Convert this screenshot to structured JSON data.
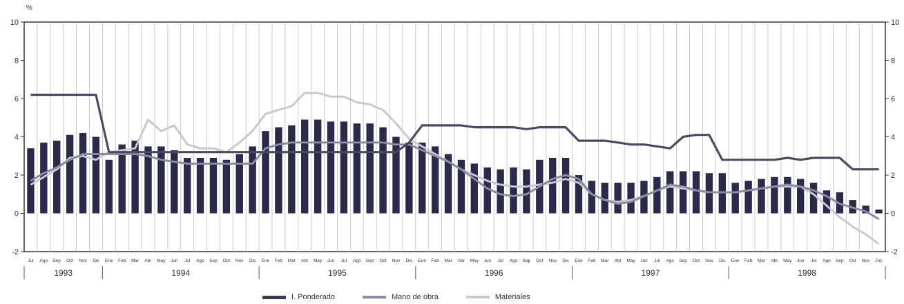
{
  "chart_data": {
    "type": "bar+line",
    "ylabel": "%",
    "ylim": [
      -2,
      10
    ],
    "yticks": [
      -2,
      0,
      2,
      4,
      6,
      8,
      10
    ],
    "grid": "vertical",
    "legend_position": "bottom",
    "years": [
      {
        "label": "1993",
        "months": 6
      },
      {
        "label": "1994",
        "months": 12
      },
      {
        "label": "1995",
        "months": 12
      },
      {
        "label": "1996",
        "months": 12
      },
      {
        "label": "1997",
        "months": 12
      },
      {
        "label": "1998",
        "months": 12
      }
    ],
    "categories": [
      "Jul",
      "Ago",
      "Sep",
      "Oct",
      "Nov",
      "Dic",
      "Ene",
      "Feb",
      "Mar",
      "Abr",
      "May",
      "Jun",
      "Jul",
      "Ago",
      "Sep",
      "Oct",
      "Nov",
      "Dic",
      "Ene",
      "Feb",
      "Mar",
      "Abr",
      "May",
      "Jun",
      "Jul",
      "Ago",
      "Sep",
      "Oct",
      "Nov",
      "Dic",
      "Ene",
      "Feb",
      "Mar",
      "Abr",
      "May",
      "Jun",
      "Jul",
      "Ago",
      "Sep",
      "Oct",
      "Nov",
      "Dic",
      "Ene",
      "Feb",
      "Mar",
      "Abr",
      "May",
      "Jun",
      "Jul",
      "Ago",
      "Sep",
      "Oct",
      "Nov",
      "Dic",
      "Ene",
      "Feb",
      "Mar",
      "Abr",
      "May",
      "Jun",
      "Jul",
      "Ago",
      "Sep",
      "Oct",
      "Nov",
      "Dic"
    ],
    "series": [
      {
        "name": "Materiales",
        "type": "bar",
        "color": "#2b2a4a",
        "values": [
          3.4,
          3.7,
          3.8,
          4.1,
          4.2,
          4.0,
          2.8,
          3.6,
          3.8,
          3.5,
          3.5,
          3.3,
          2.9,
          2.9,
          2.9,
          2.8,
          3.1,
          3.5,
          4.3,
          4.5,
          4.6,
          4.9,
          4.9,
          4.8,
          4.8,
          4.7,
          4.7,
          4.5,
          4.0,
          3.7,
          3.7,
          3.5,
          3.1,
          2.8,
          2.6,
          2.4,
          2.3,
          2.4,
          2.3,
          2.8,
          2.9,
          2.9,
          2.0,
          1.7,
          1.6,
          1.6,
          1.6,
          1.7,
          1.9,
          2.2,
          2.2,
          2.2,
          2.1,
          2.1,
          1.6,
          1.7,
          1.8,
          1.9,
          1.9,
          1.8,
          1.6,
          1.2,
          1.1,
          0.7,
          0.4,
          0.2
        ]
      },
      {
        "name": "I. Ponderado",
        "type": "line",
        "color": "#4a4a62",
        "values": [
          6.2,
          6.2,
          6.2,
          6.2,
          6.2,
          6.2,
          3.2,
          3.2,
          3.2,
          3.2,
          3.2,
          3.2,
          3.2,
          3.2,
          3.2,
          3.2,
          3.2,
          3.2,
          3.2,
          3.2,
          3.2,
          3.2,
          3.2,
          3.2,
          3.2,
          3.2,
          3.2,
          3.2,
          3.2,
          3.7,
          4.6,
          4.6,
          4.6,
          4.6,
          4.5,
          4.5,
          4.5,
          4.5,
          4.4,
          4.5,
          4.5,
          4.5,
          3.8,
          3.8,
          3.8,
          3.7,
          3.6,
          3.6,
          3.5,
          3.4,
          4.0,
          4.1,
          4.1,
          2.8,
          2.8,
          2.8,
          2.8,
          2.8,
          2.9,
          2.8,
          2.9,
          2.9,
          2.9,
          2.3,
          2.3,
          2.3
        ]
      },
      {
        "name": "Mano de obra",
        "type": "line",
        "color": "#8a8aa2",
        "values": [
          1.7,
          2.1,
          2.4,
          2.8,
          3.1,
          3.1,
          3.1,
          3.1,
          3.1,
          3.0,
          2.8,
          2.7,
          2.6,
          2.6,
          2.6,
          2.6,
          2.6,
          2.6,
          3.4,
          3.6,
          3.7,
          3.7,
          3.7,
          3.7,
          3.7,
          3.7,
          3.7,
          3.7,
          3.6,
          3.6,
          3.3,
          3.0,
          2.7,
          2.3,
          1.8,
          1.3,
          1.0,
          0.9,
          1.0,
          1.4,
          1.8,
          2.0,
          1.8,
          1.0,
          0.7,
          0.5,
          0.6,
          0.9,
          1.2,
          1.5,
          1.4,
          1.2,
          1.1,
          1.1,
          1.1,
          1.2,
          1.3,
          1.4,
          1.5,
          1.4,
          1.2,
          0.9,
          0.5,
          0.3,
          0.1,
          -0.3
        ]
      },
      {
        "name": "Materiales",
        "type": "line",
        "color": "#c8c8d2",
        "values": [
          1.5,
          1.9,
          2.3,
          2.9,
          3.0,
          2.8,
          3.2,
          3.3,
          3.4,
          4.9,
          4.3,
          4.6,
          3.6,
          3.4,
          3.4,
          3.2,
          3.7,
          4.3,
          5.2,
          5.4,
          5.6,
          6.3,
          6.3,
          6.1,
          6.1,
          5.8,
          5.7,
          5.4,
          4.7,
          3.9,
          3.5,
          3.1,
          2.7,
          2.3,
          2.0,
          1.7,
          1.5,
          1.4,
          1.4,
          1.5,
          1.6,
          1.8,
          1.6,
          1.0,
          0.7,
          0.6,
          0.7,
          0.9,
          1.2,
          1.4,
          1.3,
          1.2,
          1.1,
          1.1,
          1.1,
          1.2,
          1.3,
          1.4,
          1.4,
          1.4,
          1.0,
          0.4,
          -0.2,
          -0.7,
          -1.1,
          -1.6
        ]
      }
    ],
    "legend": [
      {
        "name": "I. Ponderado",
        "color": "#4a4a62"
      },
      {
        "name": "Mano de obra",
        "color": "#8a8aa2"
      },
      {
        "name": "Materiales",
        "color": "#c8c8d2"
      }
    ]
  }
}
